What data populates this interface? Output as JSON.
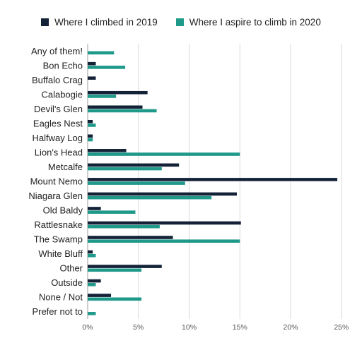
{
  "colors": {
    "climbed_2019": "#142238",
    "aspire_2020": "#1f9a8a",
    "grid": "#d9d9d9",
    "axis": "#9e9e9e"
  },
  "legend": {
    "items": [
      {
        "label": "Where I climbed in 2019",
        "color": "#142238"
      },
      {
        "label": "Where I aspire to climb in 2020",
        "color": "#1f9a8a"
      }
    ]
  },
  "chart_data": {
    "type": "bar",
    "orientation": "horizontal",
    "grid": true,
    "legend_position": "top",
    "xlim": [
      0,
      25.5
    ],
    "x_ticks": [
      0,
      5,
      10,
      15,
      20,
      25
    ],
    "x_tick_labels": [
      "0%",
      "5%",
      "10%",
      "15%",
      "20%",
      "25%"
    ],
    "categories": [
      "Any of them!",
      "Bon Echo",
      "Buffalo Crag",
      "Calabogie",
      "Devil's Glen",
      "Eagles Nest",
      "Halfway Log",
      "Lion's Head",
      "Metcalfe",
      "Mount Nemo",
      "Niagara Glen",
      "Old Baldy",
      "Rattlesnake",
      "The Swamp",
      "White Bluff",
      "Other",
      "Outside",
      "None / Not",
      "Prefer not to"
    ],
    "series": [
      {
        "name": "Where I climbed in 2019",
        "values": [
          0,
          0.8,
          0.8,
          5.9,
          5.4,
          0.5,
          0.5,
          3.8,
          9.0,
          24.6,
          14.7,
          1.3,
          15.1,
          8.4,
          0.5,
          7.3,
          1.3,
          2.3,
          0
        ]
      },
      {
        "name": "Where I aspire to climb in 2020",
        "values": [
          2.6,
          3.7,
          0,
          2.8,
          6.8,
          0.8,
          0.5,
          15.0,
          7.3,
          9.6,
          12.2,
          4.7,
          7.1,
          15.0,
          0.8,
          5.3,
          0.8,
          5.3,
          0.8
        ]
      }
    ]
  }
}
